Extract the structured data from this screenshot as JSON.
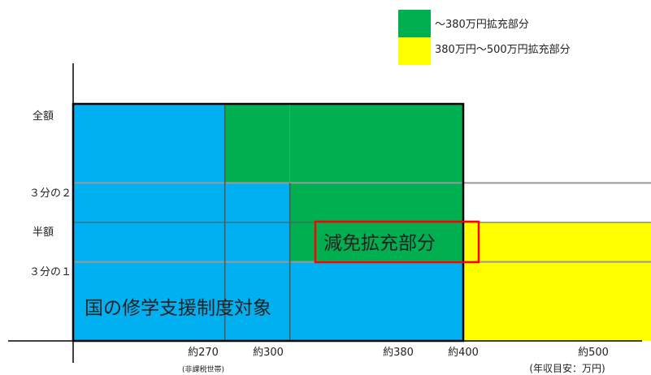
{
  "chart_data": {
    "type": "area",
    "x_unit_label": "(年収目安：万円)",
    "x_ticks": [
      {
        "value": 270,
        "label": "約270",
        "note": "(非課税世帯)"
      },
      {
        "value": 300,
        "label": "約300",
        "note": ""
      },
      {
        "value": 380,
        "label": "約380",
        "note": ""
      },
      {
        "value": 400,
        "label": "約400",
        "note": ""
      },
      {
        "value": 500,
        "label": "約500",
        "note": ""
      }
    ],
    "y_ticks": [
      {
        "value": 1,
        "label": "全額"
      },
      {
        "value": 0.6667,
        "label": "３分の２"
      },
      {
        "value": 0.5,
        "label": "半額"
      },
      {
        "value": 0.3333,
        "label": "３分の１"
      }
    ],
    "series": [
      {
        "name": "national",
        "color": "#00b0f0",
        "steps": [
          {
            "from": 200,
            "to": 270,
            "value": 1
          },
          {
            "from": 270,
            "to": 300,
            "value": 0.6667
          },
          {
            "from": 300,
            "to": 380,
            "value": 0.3333
          }
        ]
      },
      {
        "name": "~380万円拡充部分",
        "color": "#00b050",
        "steps": [
          {
            "from": 270,
            "to": 300,
            "value": 1
          },
          {
            "from": 300,
            "to": 380,
            "value": 1
          }
        ]
      },
      {
        "name": "380万円~500万円拡充部分",
        "color": "#ffff00",
        "steps": [
          {
            "from": 380,
            "to": 500,
            "value": 0.5
          }
        ]
      }
    ],
    "legend": [
      {
        "label": "～380万円拡充部分",
        "color": "#00b050"
      },
      {
        "label": "380万円～500万円拡充部分",
        "color": "#ffff00"
      }
    ],
    "legend_position": "top-right",
    "annotations": {
      "national_label": "国の修学支援制度対象",
      "expansion_label": "減免拡充部分"
    }
  }
}
